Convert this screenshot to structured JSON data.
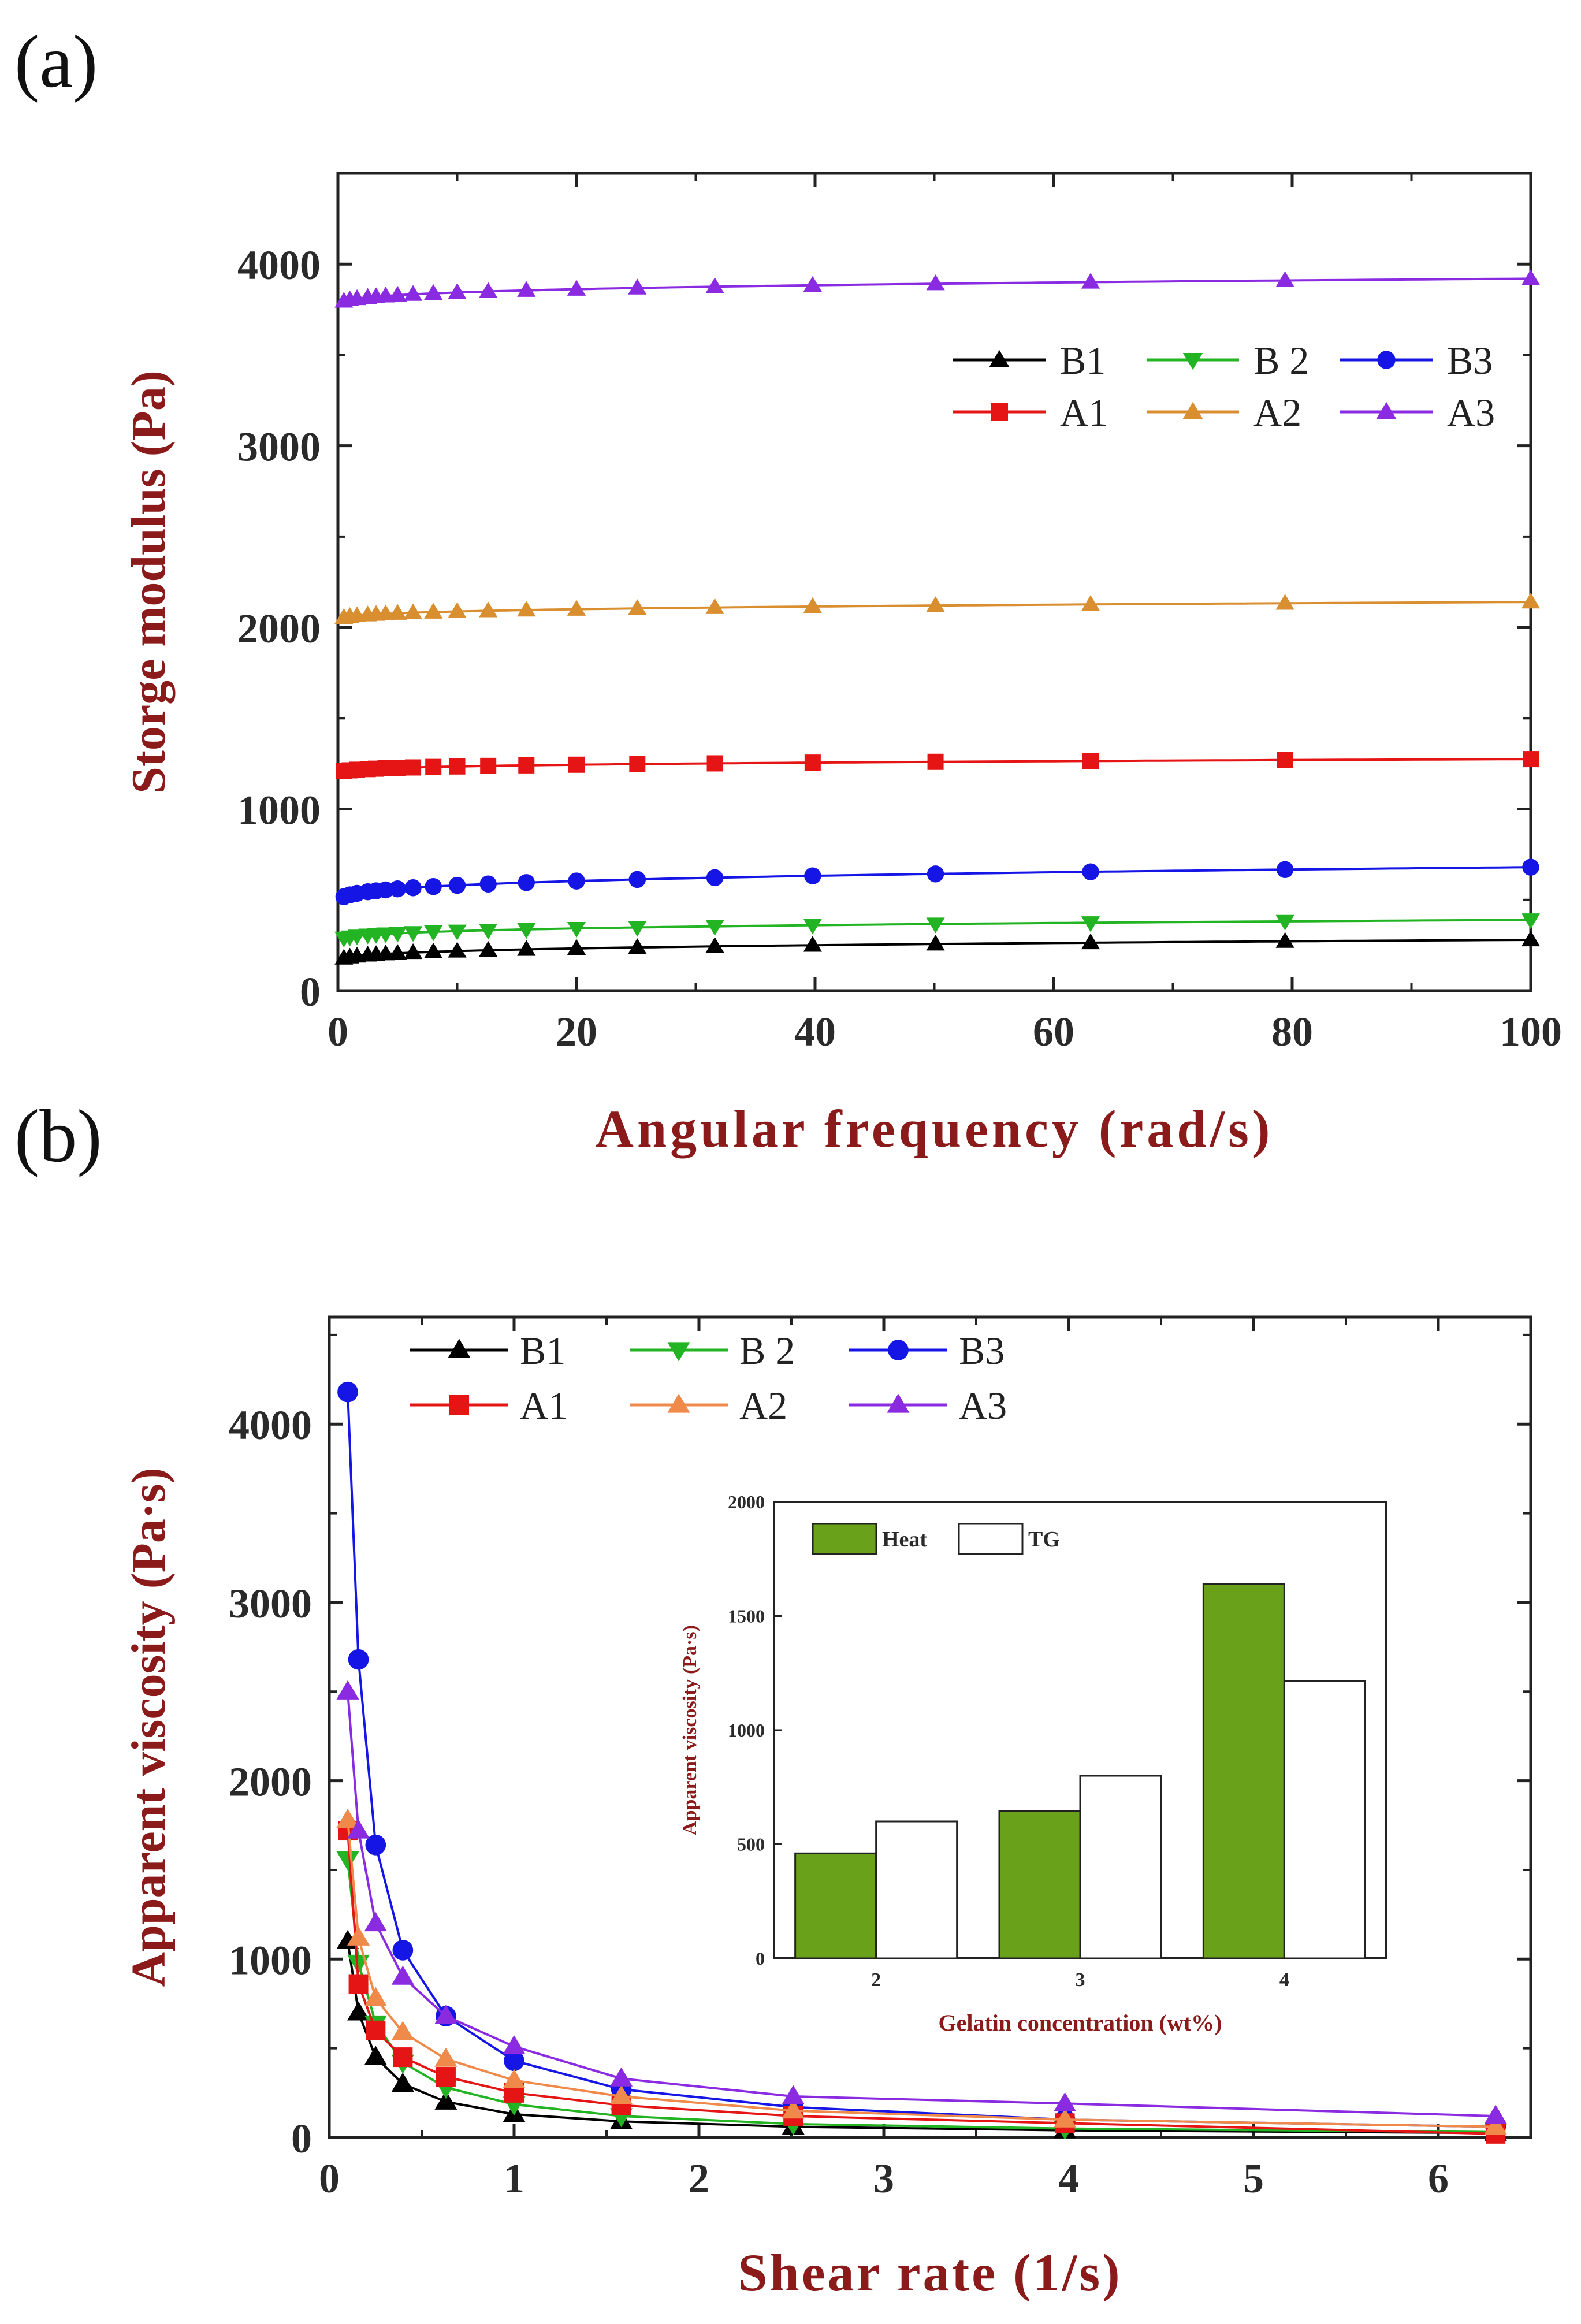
{
  "chart_data": [
    {
      "panel": "(a)",
      "type": "line",
      "xlabel": "Angular frequency (rad/s)",
      "ylabel": "Storge modulus (Pa)",
      "xlim": [
        0,
        100
      ],
      "ylim": [
        0,
        4500
      ],
      "xticks": [
        "0",
        "20",
        "40",
        "60",
        "80",
        "100"
      ],
      "yticks": [
        "0",
        "1000",
        "2000",
        "3000",
        "4000"
      ],
      "legend_position": "upper-right",
      "x": [
        0.1,
        0.158,
        0.251,
        0.398,
        0.631,
        1,
        1.58,
        2.51,
        3.98,
        6.31,
        10,
        15.8,
        25.1,
        39.8,
        63.1,
        100
      ],
      "marker_x": [
        0.5,
        1,
        1.6,
        2.5,
        3.2,
        4,
        5,
        6.3,
        8,
        10,
        12.6,
        15.8,
        20,
        25.1,
        31.6,
        39.8,
        50.1,
        63.1,
        79.4,
        100
      ],
      "series": [
        {
          "name": "B1",
          "color": "#000000",
          "marker": "triangle-up",
          "start": 150,
          "end": 280
        },
        {
          "name": "B 2",
          "color": "#22b422",
          "marker": "triangle-down",
          "start": 260,
          "end": 390
        },
        {
          "name": "B3",
          "color": "#1515e6",
          "marker": "circle",
          "start": 470,
          "end": 680
        },
        {
          "name": "A1",
          "color": "#e61515",
          "marker": "square",
          "start": 1190,
          "end": 1275
        },
        {
          "name": "A2",
          "color": "#d98e30",
          "marker": "triangle-up",
          "start": 2030,
          "end": 2140
        },
        {
          "name": "A3",
          "color": "#8a2be2",
          "marker": "triangle-up",
          "start": 3760,
          "end": 3920
        }
      ]
    },
    {
      "panel": "(b)",
      "type": "line",
      "xlabel": "Shear rate (1/s)",
      "ylabel": "Apparent viscosity (Pa·s)",
      "xlim": [
        0,
        6.5
      ],
      "ylim": [
        0,
        4600
      ],
      "xticks": [
        "0",
        "1",
        "2",
        "3",
        "4",
        "5",
        "6"
      ],
      "yticks": [
        "0",
        "1000",
        "2000",
        "3000",
        "4000"
      ],
      "legend_position": "upper-left",
      "x": [
        0.1,
        0.158,
        0.251,
        0.398,
        0.631,
        1,
        1.58,
        2.51,
        3.98,
        6.31
      ],
      "series": [
        {
          "name": "B1",
          "color": "#000000",
          "marker": "triangle-up",
          "values": [
            1100,
            700,
            450,
            300,
            200,
            130,
            90,
            60,
            40,
            25
          ]
        },
        {
          "name": "B 2",
          "color": "#22b422",
          "marker": "triangle-down",
          "values": [
            1560,
            980,
            640,
            420,
            280,
            185,
            120,
            75,
            50,
            30
          ]
        },
        {
          "name": "B3",
          "color": "#1515e6",
          "marker": "circle",
          "values": [
            4180,
            2680,
            1640,
            1050,
            680,
            430,
            270,
            170,
            100,
            60
          ]
        },
        {
          "name": "A1",
          "color": "#e61515",
          "marker": "square",
          "values": [
            1720,
            860,
            600,
            450,
            340,
            250,
            180,
            120,
            80,
            20
          ]
        },
        {
          "name": "A2",
          "color": "#f08a4b",
          "marker": "triangle-up",
          "values": [
            1780,
            1120,
            780,
            590,
            440,
            320,
            230,
            150,
            100,
            60
          ]
        },
        {
          "name": "A3",
          "color": "#8a2be2",
          "marker": "triangle-up",
          "values": [
            2500,
            1720,
            1200,
            900,
            680,
            510,
            330,
            230,
            190,
            120
          ]
        }
      ]
    },
    {
      "panel": "(b) inset",
      "type": "bar",
      "xlabel": "Gelatin concentration (wt%)",
      "ylabel": "Apparent viscosity (Pa·s)",
      "categories": [
        "2",
        "3",
        "4"
      ],
      "ylim": [
        0,
        2000
      ],
      "yticks": [
        "0",
        "500",
        "1000",
        "1500",
        "2000"
      ],
      "series": [
        {
          "name": "Heat",
          "color": "#6aa11a",
          "values": [
            460,
            645,
            1640
          ]
        },
        {
          "name": "TG",
          "color": "#ffffff",
          "values": [
            600,
            800,
            1215
          ]
        }
      ]
    }
  ]
}
